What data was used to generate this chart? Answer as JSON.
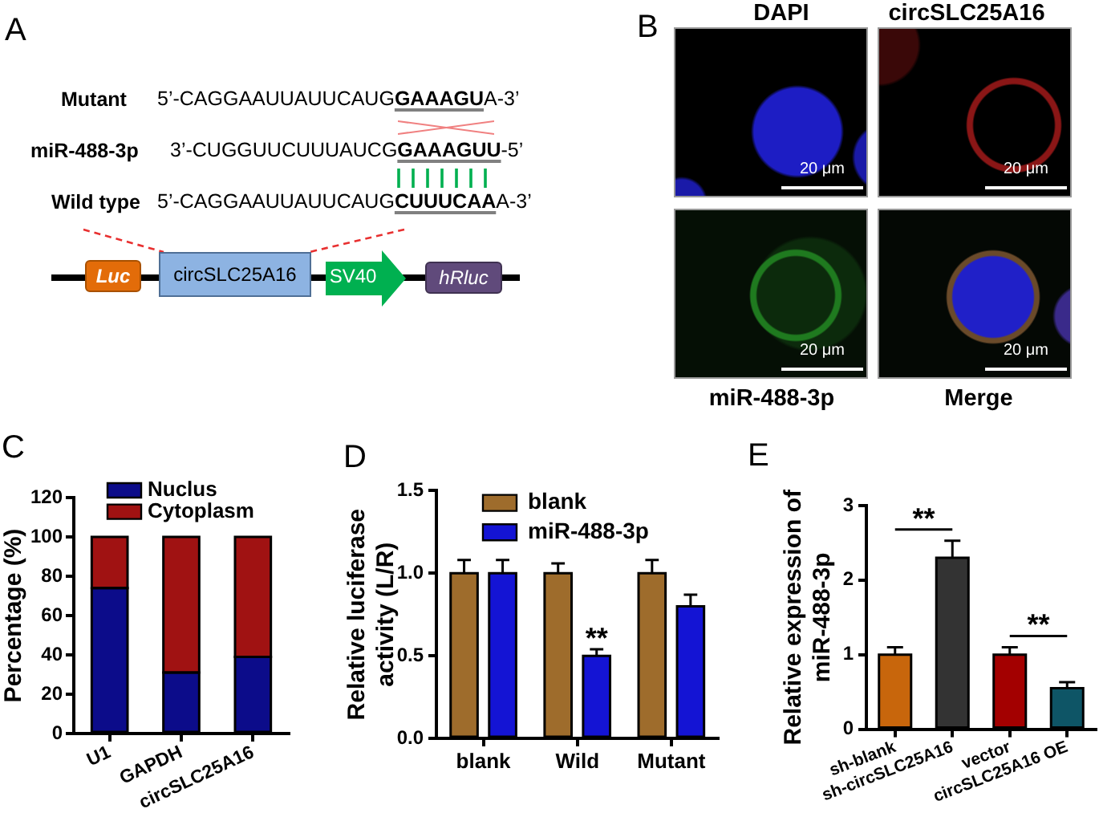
{
  "chart_data": [
    {
      "type": "other",
      "title": "A",
      "annotations": [
        "Mutant",
        "5’-CAGGAAUUAUUCAUG",
        "GAAAGU",
        "A-3’",
        "miR-488-3p",
        "3’-CUGGUUCUUUAUCG",
        "GAAAGUU",
        "-5’",
        "Wild type",
        "5’-CAGGAAUUAUUCAUG",
        "CUUUCAA",
        "A-3’",
        "Luc",
        "circSLC25A16",
        "SV40",
        "hRluc"
      ]
    },
    {
      "type": "other",
      "title": "B",
      "annotations": [
        "DAPI",
        "circSLC25A16",
        "miR-488-3p",
        "Merge",
        "20 μm",
        "20 μm",
        "20 μm",
        "20 μm"
      ]
    },
    {
      "type": "bar",
      "title": "C",
      "categories": [
        "U1",
        "GAPDH",
        "circSLC25A16"
      ],
      "stacked": true,
      "series": [
        {
          "name": "Nuclus",
          "color": "#0c0c8a",
          "values": [
            74,
            31,
            39
          ]
        },
        {
          "name": "Cytoplasm",
          "color": "#a01212",
          "values": [
            26,
            69,
            61
          ]
        }
      ],
      "ylabel": "Percentage (%)",
      "ylim": [
        0,
        120
      ],
      "yticks": [
        0,
        20,
        40,
        60,
        80,
        100,
        120
      ],
      "legend": "top left",
      "grid": false
    },
    {
      "type": "bar",
      "title": "D",
      "categories": [
        "blank",
        "Wild",
        "Mutant"
      ],
      "series": [
        {
          "name": "blank",
          "color": "#9e6c2c",
          "values": [
            1.0,
            1.0,
            1.0
          ],
          "errors": [
            0.08,
            0.06,
            0.08
          ]
        },
        {
          "name": "miR-488-3p",
          "color": "#1414d4",
          "values": [
            1.0,
            0.5,
            0.8
          ],
          "errors": [
            0.08,
            0.04,
            0.07
          ]
        }
      ],
      "ylabel": "Relative luciferase\nactivity (L/R)",
      "ylim": [
        0,
        1.5
      ],
      "yticks": [
        {
          "value": 0,
          "label": "0.0"
        },
        {
          "value": 0.5,
          "label": "0.5"
        },
        {
          "value": 1.0,
          "label": "1.0"
        },
        {
          "value": 1.5,
          "label": "1.5"
        }
      ],
      "legend": "top left",
      "grid": false,
      "annotations": [
        {
          "text": "**",
          "x": "Wild",
          "y": 0.54
        }
      ]
    },
    {
      "type": "bar",
      "title": "E",
      "categories": [
        "sh-blank",
        "sh-circSLC25A16",
        "vector",
        "circSLC25A16 OE"
      ],
      "values": [
        1.0,
        2.3,
        1.0,
        0.55
      ],
      "colors": [
        "#c8660c",
        "#333333",
        "#a30000",
        "#0e5566"
      ],
      "errors": [
        0.1,
        0.23,
        0.1,
        0.08
      ],
      "ylabel": "Relative expression of\nmiR-488-3p",
      "ylim": [
        0,
        3
      ],
      "yticks": [
        0,
        1,
        2,
        3
      ],
      "grid": false,
      "annotations": [
        "**",
        "**"
      ]
    }
  ]
}
